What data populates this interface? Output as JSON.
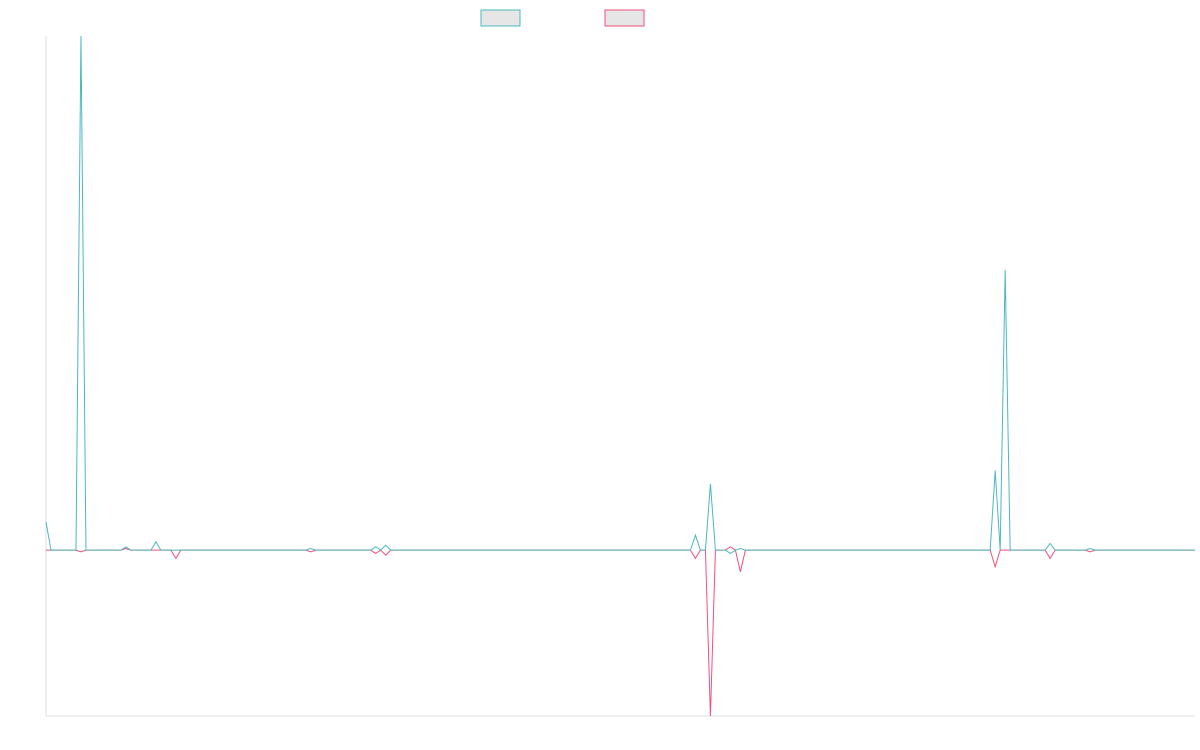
{
  "chart_data": {
    "type": "line",
    "ylim": [
      -1,
      3.1
    ],
    "series": [
      {
        "color": "#f0507a",
        "values": [
          0,
          0,
          0,
          0,
          0,
          0,
          0,
          -0.01,
          0,
          0,
          0,
          0,
          0,
          0,
          0,
          0,
          0.01,
          0,
          0,
          0,
          0,
          0,
          0,
          0,
          0,
          0,
          -0.05,
          0,
          0,
          0,
          0,
          0,
          0,
          0,
          0,
          0,
          0,
          0,
          0,
          0,
          0,
          0,
          0,
          0,
          0,
          0,
          0,
          0,
          0,
          0,
          0,
          0,
          0,
          -0.01,
          0,
          0,
          0,
          0,
          0,
          0,
          0,
          0,
          0,
          0,
          0,
          0,
          -0.02,
          0,
          -0.03,
          0,
          0,
          0,
          0,
          0,
          0,
          0,
          0,
          0,
          0,
          0,
          0,
          0,
          0,
          0,
          0,
          0,
          0,
          0,
          0,
          0,
          0,
          0,
          0,
          0,
          0,
          0,
          0,
          0,
          0,
          0,
          0,
          0,
          0,
          0,
          0,
          0,
          0,
          0,
          0,
          0,
          0,
          0,
          0,
          0,
          0,
          0,
          0,
          0,
          0,
          0,
          0,
          0,
          0,
          0,
          0,
          0,
          0,
          0,
          0,
          0,
          -0.05,
          0,
          0,
          -1,
          0,
          0,
          0,
          0.02,
          0,
          -0.13,
          0,
          0,
          0,
          0,
          0,
          0,
          0,
          0,
          0,
          0,
          0,
          0,
          0,
          0,
          0,
          0,
          0,
          0,
          0,
          0,
          0,
          0,
          0,
          0,
          0,
          0,
          0,
          0,
          0,
          0,
          0,
          0,
          0,
          0,
          0,
          0,
          0,
          0,
          0,
          0,
          0,
          0,
          0,
          0,
          0,
          0,
          0,
          0,
          0,
          0,
          -0.1,
          0,
          0,
          0,
          0,
          0,
          0,
          0,
          0,
          0,
          0,
          -0.05,
          0,
          0,
          0,
          0,
          0,
          0,
          0,
          -0.01,
          0,
          0,
          0,
          0,
          0,
          0,
          0,
          0,
          0,
          0,
          0,
          0,
          0,
          0,
          0,
          0,
          0,
          0,
          0,
          0,
          0
        ]
      },
      {
        "color": "#4bb8c0",
        "values": [
          0.17,
          0,
          0,
          0,
          0,
          0,
          0,
          3.1,
          0,
          0,
          0,
          0,
          0,
          0,
          0,
          0,
          0.02,
          0,
          0,
          0,
          0,
          0,
          0.05,
          0,
          0,
          0,
          0,
          0,
          0,
          0,
          0,
          0,
          0,
          0,
          0,
          0,
          0,
          0,
          0,
          0,
          0,
          0,
          0,
          0,
          0,
          0,
          0,
          0,
          0,
          0,
          0,
          0,
          0,
          0.01,
          0,
          0,
          0,
          0,
          0,
          0,
          0,
          0,
          0,
          0,
          0,
          0,
          0.02,
          0,
          0.03,
          0,
          0,
          0,
          0,
          0,
          0,
          0,
          0,
          0,
          0,
          0,
          0,
          0,
          0,
          0,
          0,
          0,
          0,
          0,
          0,
          0,
          0,
          0,
          0,
          0,
          0,
          0,
          0,
          0,
          0,
          0,
          0,
          0,
          0,
          0,
          0,
          0,
          0,
          0,
          0,
          0,
          0,
          0,
          0,
          0,
          0,
          0,
          0,
          0,
          0,
          0,
          0,
          0,
          0,
          0,
          0,
          0,
          0,
          0,
          0,
          0,
          0.09,
          0,
          0,
          0.4,
          0,
          0,
          0,
          -0.02,
          0,
          0.01,
          0,
          0,
          0,
          0,
          0,
          0,
          0,
          0,
          0,
          0,
          0,
          0,
          0,
          0,
          0,
          0,
          0,
          0,
          0,
          0,
          0,
          0,
          0,
          0,
          0,
          0,
          0,
          0,
          0,
          0,
          0,
          0,
          0,
          0,
          0,
          0,
          0,
          0,
          0,
          0,
          0,
          0,
          0,
          0,
          0,
          0,
          0,
          0,
          0,
          0,
          0.48,
          0,
          1.69,
          0,
          0,
          0,
          0,
          0,
          0,
          0,
          0,
          0.04,
          0,
          0,
          0,
          0,
          0,
          0,
          0,
          0.01,
          0,
          0,
          0,
          0,
          0,
          0,
          0,
          0,
          0,
          0,
          0,
          0,
          0,
          0,
          0,
          0,
          0,
          0,
          0,
          0,
          0
        ]
      }
    ]
  }
}
